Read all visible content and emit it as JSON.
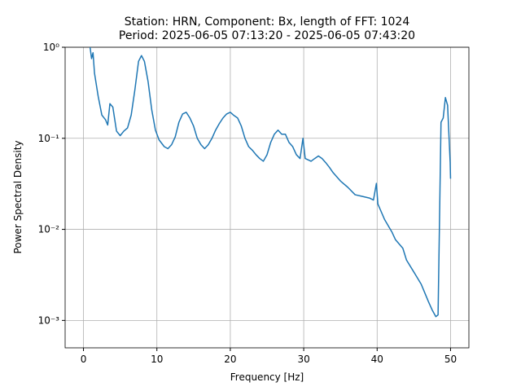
{
  "chart_data": {
    "type": "line",
    "title": "Station: HRN, Component: Bx, length of FFT: 1024",
    "subtitle": "Period: 2025-06-05 07:13:20 - 2025-06-05 07:43:20",
    "x_label": "Frequency [Hz]",
    "y_label": "Power Spectral Density",
    "x": [
      0.9,
      1.1,
      1.3,
      1.5,
      2.0,
      2.5,
      3.0,
      3.3,
      3.6,
      4.0,
      4.5,
      5.0,
      5.5,
      6.0,
      6.5,
      7.0,
      7.5,
      7.9,
      8.3,
      8.8,
      9.3,
      9.8,
      10.3,
      11.0,
      11.5,
      12.0,
      12.5,
      13.0,
      13.5,
      14.0,
      14.5,
      15.0,
      15.5,
      16.0,
      16.5,
      17.0,
      17.5,
      18.0,
      18.5,
      19.0,
      19.5,
      20.0,
      20.5,
      21.0,
      21.5,
      22.0,
      22.5,
      23.0,
      23.5,
      24.0,
      24.5,
      25.0,
      25.5,
      26.0,
      26.5,
      27.0,
      27.5,
      28.0,
      28.5,
      29.0,
      29.5,
      29.9,
      30.2,
      31.0,
      31.5,
      32.0,
      32.5,
      33.0,
      33.5,
      34.0,
      35.0,
      36.0,
      37.0,
      38.0,
      39.0,
      39.5,
      39.9,
      40.1,
      40.5,
      41.0,
      42.0,
      42.5,
      43.5,
      44.0,
      45.0,
      46.0,
      46.5,
      47.0,
      47.5,
      48.0,
      48.3,
      48.5,
      48.7,
      49.0,
      49.3,
      49.6,
      49.8,
      49.95,
      50.0
    ],
    "series": [
      {
        "name": "PSD",
        "color": "#1f77b4",
        "values": [
          1.0,
          0.75,
          0.87,
          0.52,
          0.29,
          0.18,
          0.16,
          0.14,
          0.24,
          0.22,
          0.12,
          0.107,
          0.12,
          0.13,
          0.18,
          0.34,
          0.7,
          0.81,
          0.7,
          0.42,
          0.205,
          0.123,
          0.096,
          0.081,
          0.077,
          0.085,
          0.104,
          0.15,
          0.185,
          0.193,
          0.167,
          0.136,
          0.1,
          0.085,
          0.077,
          0.085,
          0.1,
          0.123,
          0.145,
          0.167,
          0.185,
          0.193,
          0.178,
          0.167,
          0.136,
          0.1,
          0.081,
          0.074,
          0.066,
          0.06,
          0.056,
          0.066,
          0.09,
          0.111,
          0.123,
          0.111,
          0.111,
          0.09,
          0.081,
          0.066,
          0.06,
          0.1,
          0.06,
          0.056,
          0.06,
          0.064,
          0.06,
          0.054,
          0.048,
          0.042,
          0.034,
          0.029,
          0.024,
          0.023,
          0.022,
          0.021,
          0.032,
          0.019,
          0.016,
          0.0129,
          0.0094,
          0.0077,
          0.0062,
          0.0046,
          0.0034,
          0.0025,
          0.002,
          0.0016,
          0.0013,
          0.0011,
          0.00115,
          0.0129,
          0.15,
          0.167,
          0.28,
          0.23,
          0.1,
          0.054,
          0.036
        ]
      }
    ],
    "xlim": [
      -2.5,
      52.5
    ],
    "ylim": [
      0.0005,
      1
    ],
    "xticks": [
      0,
      10,
      20,
      30,
      40,
      50
    ],
    "yticks": [
      {
        "value": 0.001,
        "label": "10⁻³"
      },
      {
        "value": 0.01,
        "label": "10⁻²"
      },
      {
        "value": 0.1,
        "label": "10⁻¹"
      },
      {
        "value": 1,
        "label": "10⁰"
      }
    ],
    "log_y": true,
    "grid": true
  }
}
